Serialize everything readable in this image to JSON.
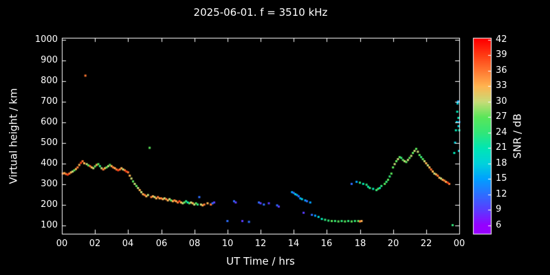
{
  "chart_data": {
    "type": "scatter",
    "title": "2025-06-01. f = 3510 kHz",
    "xlabel": "UT Time / hrs",
    "ylabel": "Virtual height / km",
    "colorbar_label": "SNR / dB",
    "background": "#000000",
    "axis_color": "#ffffff",
    "grid": false,
    "xlim": [
      0,
      24
    ],
    "ylim": [
      100,
      1000
    ],
    "x_ticks": [
      0,
      2,
      4,
      6,
      8,
      10,
      12,
      14,
      16,
      18,
      20,
      22,
      24
    ],
    "x_tick_labels": [
      "00",
      "02",
      "04",
      "06",
      "08",
      "10",
      "12",
      "14",
      "16",
      "18",
      "20",
      "22",
      "00"
    ],
    "y_ticks": [
      100,
      200,
      300,
      400,
      500,
      600,
      700,
      800,
      900,
      1000
    ],
    "colorbar_range": [
      6,
      42
    ],
    "colorbar_ticks": [
      6,
      9,
      12,
      15,
      18,
      21,
      24,
      27,
      30,
      33,
      36,
      39,
      42
    ],
    "color_scale": [
      {
        "value": 6,
        "color": "#9600ff"
      },
      {
        "value": 9,
        "color": "#5a3cff"
      },
      {
        "value": 12,
        "color": "#2d6eff"
      },
      {
        "value": 15,
        "color": "#00a0ff"
      },
      {
        "value": 18,
        "color": "#00d2dc"
      },
      {
        "value": 21,
        "color": "#00e6b4"
      },
      {
        "value": 24,
        "color": "#32e678"
      },
      {
        "value": 27,
        "color": "#5ae65a"
      },
      {
        "value": 30,
        "color": "#c8dc78"
      },
      {
        "value": 33,
        "color": "#ffb450"
      },
      {
        "value": 36,
        "color": "#ff7832"
      },
      {
        "value": 39,
        "color": "#ff3c14"
      },
      {
        "value": 42,
        "color": "#ff0000"
      }
    ],
    "point_format": [
      "ut_hours",
      "virtual_height_km",
      "snr_db"
    ],
    "points": [
      [
        0.05,
        350,
        36
      ],
      [
        0.15,
        352,
        33
      ],
      [
        0.25,
        348,
        36
      ],
      [
        0.35,
        345,
        39
      ],
      [
        0.45,
        350,
        36
      ],
      [
        0.55,
        356,
        33
      ],
      [
        0.65,
        360,
        30
      ],
      [
        0.75,
        366,
        27
      ],
      [
        0.85,
        372,
        33
      ],
      [
        0.95,
        380,
        36
      ],
      [
        1.05,
        392,
        33
      ],
      [
        1.15,
        402,
        39
      ],
      [
        1.25,
        410,
        36
      ],
      [
        1.35,
        400,
        33
      ],
      [
        1.42,
        825,
        36
      ],
      [
        1.5,
        396,
        30
      ],
      [
        1.6,
        390,
        27
      ],
      [
        1.7,
        386,
        36
      ],
      [
        1.8,
        380,
        33
      ],
      [
        1.9,
        376,
        30
      ],
      [
        2.0,
        385,
        27
      ],
      [
        2.1,
        392,
        33
      ],
      [
        2.2,
        396,
        27
      ],
      [
        2.3,
        386,
        24
      ],
      [
        2.4,
        376,
        30
      ],
      [
        2.5,
        370,
        36
      ],
      [
        2.6,
        376,
        33
      ],
      [
        2.7,
        380,
        27
      ],
      [
        2.8,
        386,
        30
      ],
      [
        2.9,
        392,
        27
      ],
      [
        3.0,
        386,
        33
      ],
      [
        3.1,
        380,
        36
      ],
      [
        3.2,
        376,
        33
      ],
      [
        3.3,
        370,
        36
      ],
      [
        3.4,
        366,
        39
      ],
      [
        3.5,
        370,
        36
      ],
      [
        3.6,
        376,
        33
      ],
      [
        3.7,
        370,
        30
      ],
      [
        3.8,
        366,
        36
      ],
      [
        3.9,
        360,
        39
      ],
      [
        4.0,
        356,
        36
      ],
      [
        4.1,
        340,
        33
      ],
      [
        4.2,
        326,
        30
      ],
      [
        4.3,
        312,
        27
      ],
      [
        4.4,
        300,
        30
      ],
      [
        4.5,
        290,
        27
      ],
      [
        4.6,
        280,
        30
      ],
      [
        4.7,
        270,
        33
      ],
      [
        4.8,
        260,
        30
      ],
      [
        4.9,
        250,
        33
      ],
      [
        5.0,
        246,
        36
      ],
      [
        5.1,
        240,
        33
      ],
      [
        5.2,
        246,
        30
      ],
      [
        5.3,
        475,
        27
      ],
      [
        5.4,
        236,
        36
      ],
      [
        5.5,
        240,
        33
      ],
      [
        5.6,
        236,
        30
      ],
      [
        5.7,
        230,
        33
      ],
      [
        5.8,
        236,
        36
      ],
      [
        5.9,
        230,
        33
      ],
      [
        6.0,
        230,
        36
      ],
      [
        6.1,
        226,
        33
      ],
      [
        6.2,
        230,
        30
      ],
      [
        6.3,
        226,
        36
      ],
      [
        6.4,
        220,
        33
      ],
      [
        6.5,
        226,
        30
      ],
      [
        6.6,
        220,
        27
      ],
      [
        6.7,
        216,
        33
      ],
      [
        6.8,
        220,
        36
      ],
      [
        6.9,
        216,
        33
      ],
      [
        7.0,
        210,
        36
      ],
      [
        7.1,
        216,
        39
      ],
      [
        7.2,
        210,
        33
      ],
      [
        7.3,
        206,
        30
      ],
      [
        7.4,
        210,
        27
      ],
      [
        7.5,
        216,
        24
      ],
      [
        7.6,
        210,
        21
      ],
      [
        7.7,
        206,
        27
      ],
      [
        7.8,
        210,
        30
      ],
      [
        7.9,
        206,
        33
      ],
      [
        8.0,
        200,
        30
      ],
      [
        8.1,
        206,
        27
      ],
      [
        8.2,
        200,
        24
      ],
      [
        8.3,
        236,
        12
      ],
      [
        8.4,
        200,
        30
      ],
      [
        8.5,
        196,
        33
      ],
      [
        8.6,
        200,
        36
      ],
      [
        8.8,
        206,
        33
      ],
      [
        9.0,
        200,
        36
      ],
      [
        9.1,
        206,
        12
      ],
      [
        9.2,
        210,
        9
      ],
      [
        10.0,
        120,
        12
      ],
      [
        10.4,
        216,
        12
      ],
      [
        10.5,
        210,
        9
      ],
      [
        10.9,
        120,
        9
      ],
      [
        11.3,
        116,
        12
      ],
      [
        11.9,
        210,
        12
      ],
      [
        12.0,
        206,
        9
      ],
      [
        12.2,
        200,
        12
      ],
      [
        12.5,
        206,
        9
      ],
      [
        13.0,
        196,
        12
      ],
      [
        13.1,
        190,
        9
      ],
      [
        13.9,
        260,
        15
      ],
      [
        14.0,
        256,
        12
      ],
      [
        14.1,
        250,
        18
      ],
      [
        14.2,
        246,
        15
      ],
      [
        14.3,
        240,
        12
      ],
      [
        14.4,
        230,
        15
      ],
      [
        14.5,
        226,
        18
      ],
      [
        14.6,
        160,
        9
      ],
      [
        14.7,
        220,
        15
      ],
      [
        14.8,
        216,
        12
      ],
      [
        15.0,
        210,
        15
      ],
      [
        15.1,
        150,
        12
      ],
      [
        15.3,
        146,
        15
      ],
      [
        15.5,
        140,
        18
      ],
      [
        15.7,
        130,
        21
      ],
      [
        15.9,
        126,
        24
      ],
      [
        16.1,
        122,
        24
      ],
      [
        16.3,
        120,
        27
      ],
      [
        16.5,
        120,
        24
      ],
      [
        16.7,
        118,
        27
      ],
      [
        16.9,
        120,
        24
      ],
      [
        17.1,
        118,
        27
      ],
      [
        17.3,
        120,
        24
      ],
      [
        17.5,
        118,
        27
      ],
      [
        17.7,
        120,
        24
      ],
      [
        17.9,
        120,
        27
      ],
      [
        18.0,
        118,
        36
      ],
      [
        18.1,
        120,
        33
      ],
      [
        17.5,
        300,
        12
      ],
      [
        17.8,
        310,
        15
      ],
      [
        18.0,
        306,
        24
      ],
      [
        18.2,
        300,
        21
      ],
      [
        18.4,
        296,
        24
      ],
      [
        18.5,
        286,
        21
      ],
      [
        18.6,
        280,
        24
      ],
      [
        18.8,
        276,
        21
      ],
      [
        19.0,
        270,
        24
      ],
      [
        19.1,
        276,
        27
      ],
      [
        19.2,
        280,
        21
      ],
      [
        19.3,
        290,
        24
      ],
      [
        19.5,
        300,
        27
      ],
      [
        19.6,
        310,
        24
      ],
      [
        19.7,
        320,
        27
      ],
      [
        19.8,
        336,
        24
      ],
      [
        19.9,
        350,
        27
      ],
      [
        20.0,
        380,
        27
      ],
      [
        20.1,
        396,
        30
      ],
      [
        20.2,
        410,
        27
      ],
      [
        20.3,
        420,
        30
      ],
      [
        20.4,
        430,
        27
      ],
      [
        20.5,
        426,
        24
      ],
      [
        20.6,
        416,
        27
      ],
      [
        20.7,
        410,
        30
      ],
      [
        20.8,
        406,
        27
      ],
      [
        20.9,
        416,
        30
      ],
      [
        21.0,
        426,
        27
      ],
      [
        21.1,
        436,
        30
      ],
      [
        21.2,
        450,
        27
      ],
      [
        21.3,
        460,
        30
      ],
      [
        21.4,
        470,
        27
      ],
      [
        21.5,
        456,
        30
      ],
      [
        21.6,
        440,
        27
      ],
      [
        21.7,
        430,
        24
      ],
      [
        21.8,
        420,
        27
      ],
      [
        21.9,
        410,
        30
      ],
      [
        22.0,
        400,
        33
      ],
      [
        22.1,
        390,
        30
      ],
      [
        22.2,
        380,
        33
      ],
      [
        22.3,
        370,
        36
      ],
      [
        22.4,
        360,
        33
      ],
      [
        22.5,
        350,
        30
      ],
      [
        22.6,
        346,
        33
      ],
      [
        22.7,
        340,
        36
      ],
      [
        22.8,
        330,
        33
      ],
      [
        22.9,
        326,
        30
      ],
      [
        23.0,
        320,
        33
      ],
      [
        23.1,
        316,
        36
      ],
      [
        23.2,
        310,
        33
      ],
      [
        23.3,
        306,
        39
      ],
      [
        23.4,
        300,
        36
      ],
      [
        23.6,
        100,
        24
      ],
      [
        23.7,
        450,
        21
      ],
      [
        23.75,
        500,
        18
      ],
      [
        23.8,
        560,
        21
      ],
      [
        23.85,
        600,
        18
      ],
      [
        23.88,
        650,
        21
      ],
      [
        23.9,
        690,
        18
      ],
      [
        23.93,
        700,
        15
      ],
      [
        23.95,
        620,
        21
      ],
      [
        23.96,
        580,
        18
      ],
      [
        23.98,
        460,
        18
      ],
      [
        24.0,
        600,
        15
      ],
      [
        24.0,
        560,
        21
      ]
    ]
  }
}
